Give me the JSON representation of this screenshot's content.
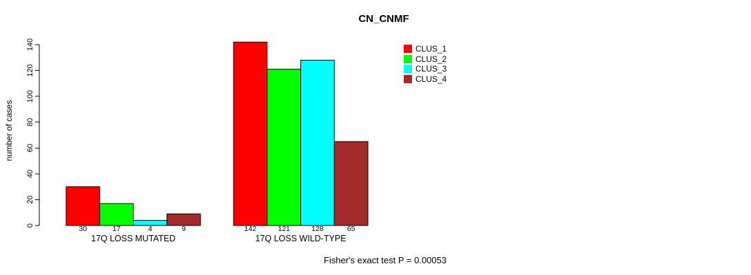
{
  "page": {
    "background": "#FFFFFF"
  },
  "chart_data": {
    "type": "bar",
    "title": "CN_CNMF",
    "ylabel": "number of cases",
    "xlabel": "",
    "categories": [
      "17Q LOSS MUTATED",
      "17Q LOSS WILD-TYPE"
    ],
    "series": [
      {
        "name": "CLUS_1",
        "color": "#FF0000",
        "values": [
          30,
          142
        ]
      },
      {
        "name": "CLUS_2",
        "color": "#00FF00",
        "values": [
          17,
          121
        ]
      },
      {
        "name": "CLUS_3",
        "color": "#00FFFF",
        "values": [
          4,
          128
        ]
      },
      {
        "name": "CLUS_4",
        "color": "#A52A2A",
        "values": [
          9,
          65
        ]
      }
    ],
    "ylim": [
      0,
      140
    ],
    "yticks": [
      0,
      20,
      40,
      60,
      80,
      100,
      120,
      140
    ],
    "show_bar_values": true,
    "grid": false,
    "legend": {
      "position": "top-right"
    },
    "annotation": "Fisher's exact test P = 0.00053"
  }
}
